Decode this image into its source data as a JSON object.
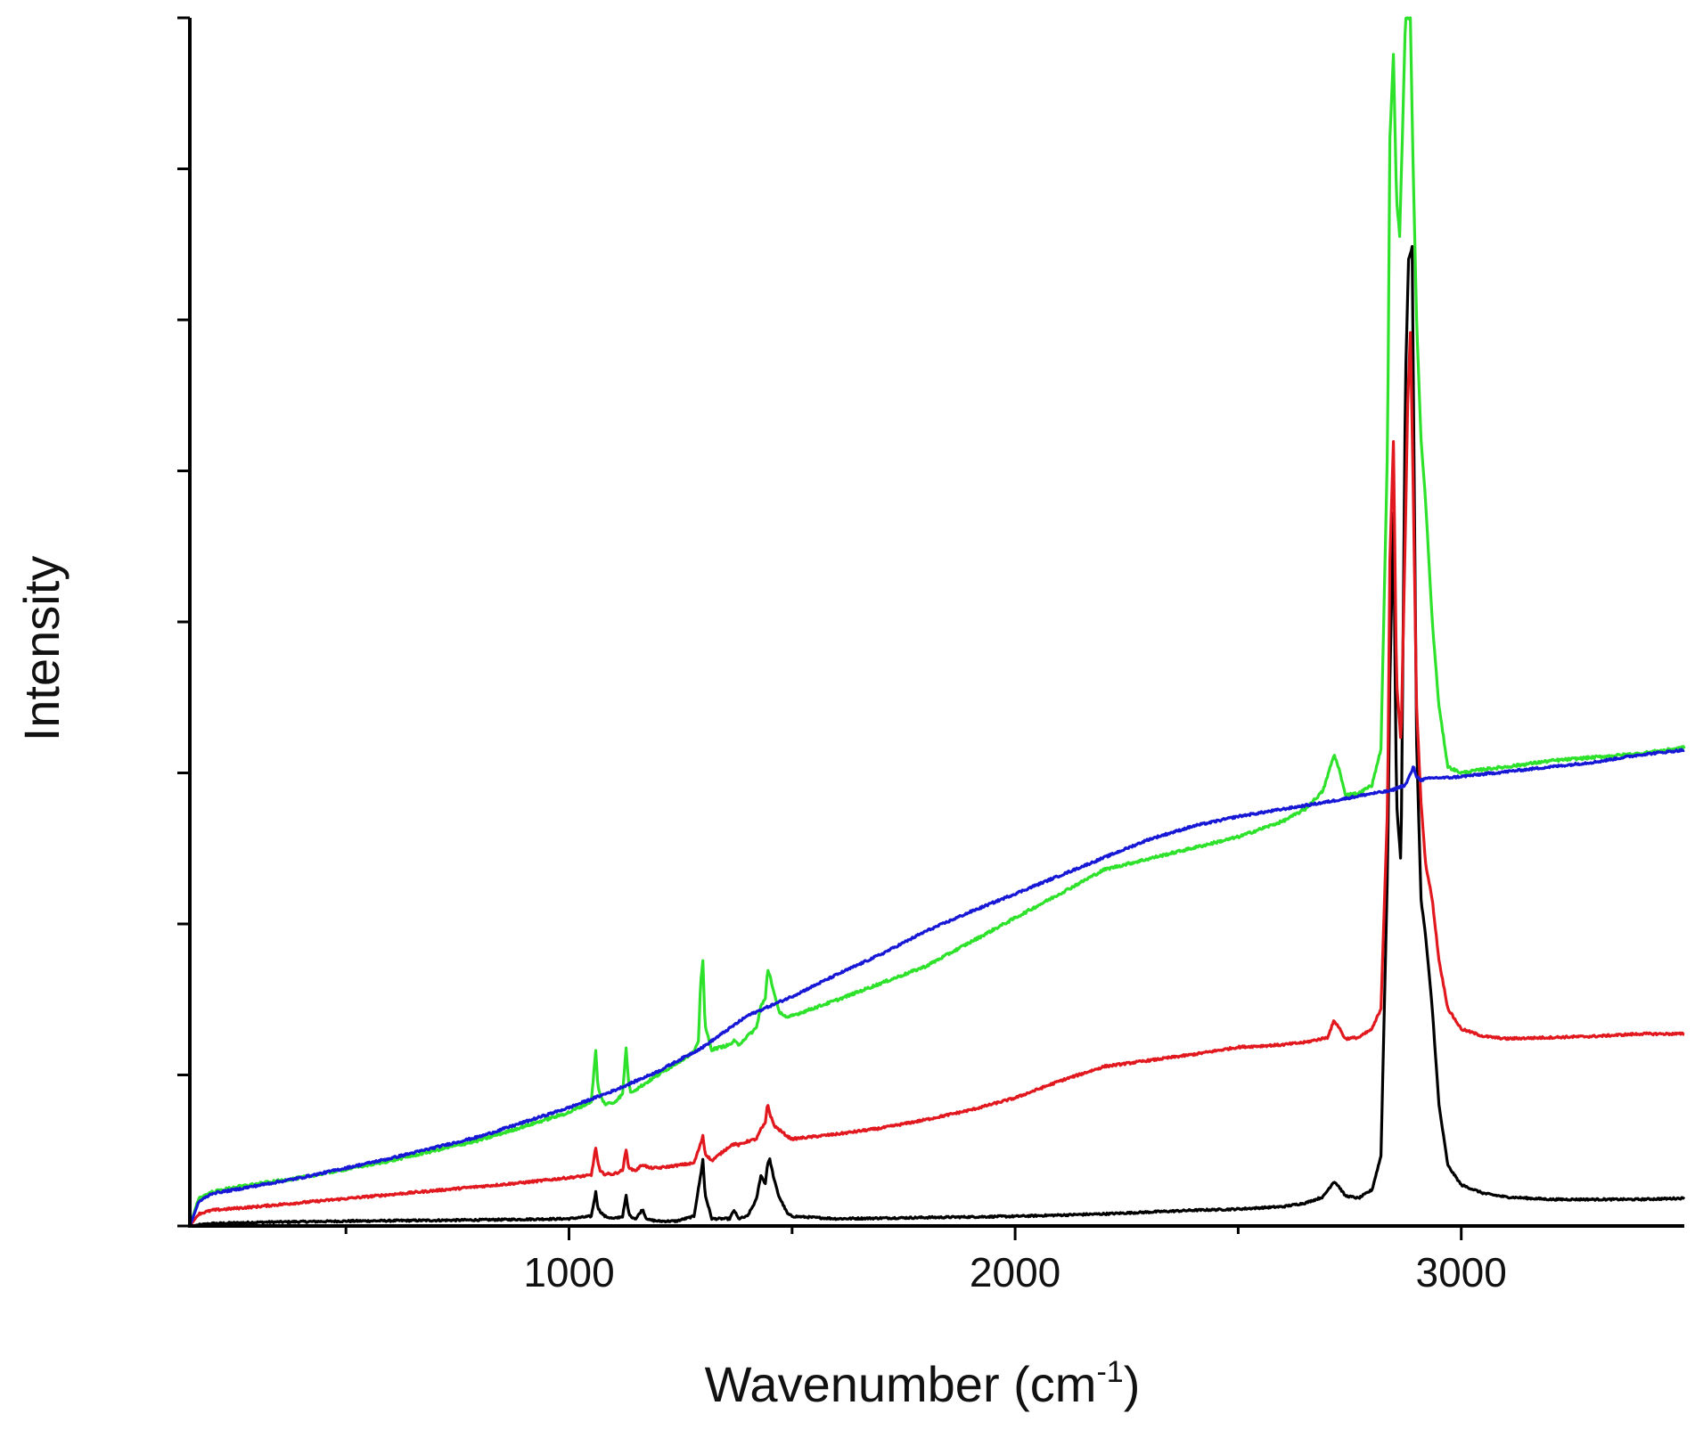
{
  "chart_data": {
    "type": "line",
    "title": "",
    "xlabel": "Wavenumber (cm",
    "xlabel_sup": "-1",
    "xlabel_close": ")",
    "ylabel": "Intensity",
    "xlim": [
      150,
      3500
    ],
    "ylim": [
      0,
      100
    ],
    "x_major_ticks": [
      1000,
      2000,
      3000
    ],
    "x_tick_labels": [
      "1000",
      "2000",
      "3000"
    ],
    "x_minor_ticks": [
      500,
      1500,
      2500
    ],
    "y_ticks": [
      0,
      12.5,
      25,
      37.5,
      50,
      62.5,
      75,
      87.5,
      100
    ],
    "y_tick_labels_shown": false,
    "grid": false,
    "legend": "none",
    "series": [
      {
        "name": "black",
        "color": "#000000",
        "noise": 0.15,
        "x": [
          150,
          200,
          300,
          500,
          800,
          1000,
          1050,
          1060,
          1065,
          1070,
          1080,
          1100,
          1120,
          1128,
          1133,
          1138,
          1150,
          1165,
          1172,
          1180,
          1200,
          1240,
          1280,
          1295,
          1300,
          1305,
          1320,
          1360,
          1370,
          1380,
          1400,
          1420,
          1430,
          1440,
          1445,
          1450,
          1460,
          1470,
          1490,
          1500,
          1600,
          1800,
          2000,
          2200,
          2400,
          2500,
          2600,
          2650,
          2690,
          2715,
          2725,
          2740,
          2770,
          2800,
          2820,
          2835,
          2840,
          2848,
          2855,
          2865,
          2875,
          2882,
          2890,
          2895,
          2900,
          2910,
          2920,
          2935,
          2950,
          2970,
          3000,
          3050,
          3100,
          3200,
          3300,
          3400,
          3500
        ],
        "y": [
          0,
          0.2,
          0.3,
          0.4,
          0.5,
          0.6,
          0.8,
          2.8,
          1.5,
          1.2,
          0.8,
          0.6,
          0.8,
          2.5,
          1.2,
          0.8,
          0.6,
          1.4,
          0.7,
          0.5,
          0.4,
          0.4,
          0.8,
          4.2,
          5.5,
          2.6,
          0.6,
          0.6,
          1.3,
          0.6,
          0.8,
          2.2,
          4.2,
          3.5,
          5.2,
          5.5,
          3.8,
          2.5,
          1.0,
          0.8,
          0.6,
          0.7,
          0.8,
          1.0,
          1.3,
          1.4,
          1.6,
          1.9,
          2.4,
          3.7,
          3.3,
          2.5,
          2.3,
          3.0,
          5.8,
          30,
          45,
          59,
          35,
          30,
          70,
          80,
          81,
          60,
          40,
          27,
          24,
          18,
          10,
          5,
          3.4,
          2.7,
          2.4,
          2.2,
          2.2,
          2.2,
          2.3
        ]
      },
      {
        "name": "red",
        "color": "#e2181f",
        "noise": 0.18,
        "x": [
          150,
          170,
          200,
          300,
          600,
          900,
          1050,
          1060,
          1065,
          1070,
          1080,
          1100,
          1120,
          1128,
          1133,
          1138,
          1150,
          1165,
          1180,
          1200,
          1280,
          1295,
          1300,
          1305,
          1320,
          1360,
          1370,
          1380,
          1400,
          1420,
          1430,
          1440,
          1445,
          1450,
          1460,
          1470,
          1490,
          1500,
          1600,
          1700,
          1800,
          1900,
          2000,
          2100,
          2200,
          2300,
          2400,
          2500,
          2600,
          2650,
          2700,
          2715,
          2725,
          2740,
          2770,
          2800,
          2820,
          2835,
          2840,
          2848,
          2855,
          2865,
          2875,
          2880,
          2886,
          2892,
          2900,
          2910,
          2920,
          2935,
          2950,
          2970,
          3000,
          3050,
          3100,
          3200,
          3300,
          3400,
          3500
        ],
        "y": [
          0,
          1.0,
          1.3,
          1.6,
          2.6,
          3.6,
          4.2,
          6.5,
          5.2,
          4.5,
          4.3,
          4.3,
          4.6,
          6.3,
          5.0,
          4.7,
          4.6,
          5.1,
          4.8,
          4.8,
          5.2,
          6.8,
          7.5,
          6.0,
          5.4,
          6.6,
          6.8,
          6.7,
          7.0,
          7.2,
          8.0,
          8.5,
          10.2,
          9.3,
          8.3,
          8.0,
          7.4,
          7.2,
          7.6,
          8.1,
          8.8,
          9.6,
          10.6,
          12.0,
          13.2,
          13.7,
          14.2,
          14.8,
          15.0,
          15.2,
          15.6,
          17.0,
          16.5,
          15.5,
          15.6,
          16.3,
          18.0,
          35,
          55,
          65,
          45,
          40,
          58,
          68,
          74,
          62,
          43,
          35,
          30,
          27,
          22,
          18,
          16.3,
          15.7,
          15.5,
          15.6,
          15.7,
          15.9,
          15.9
        ]
      },
      {
        "name": "green",
        "color": "#2ee22c",
        "noise": 0.22,
        "x": [
          150,
          170,
          200,
          250,
          400,
          600,
          800,
          1000,
          1050,
          1060,
          1065,
          1070,
          1080,
          1100,
          1120,
          1128,
          1133,
          1138,
          1150,
          1200,
          1280,
          1290,
          1295,
          1300,
          1305,
          1320,
          1360,
          1370,
          1380,
          1400,
          1420,
          1430,
          1440,
          1445,
          1450,
          1460,
          1470,
          1490,
          1500,
          1600,
          1800,
          2000,
          2200,
          2400,
          2500,
          2600,
          2650,
          2690,
          2715,
          2725,
          2740,
          2770,
          2800,
          2820,
          2835,
          2840,
          2848,
          2855,
          2862,
          2868,
          2875,
          2880,
          2886,
          2892,
          2900,
          2910,
          2920,
          2935,
          2950,
          2970,
          3000,
          3050,
          3100,
          3200,
          3300,
          3400,
          3500
        ],
        "y": [
          0,
          2.3,
          2.8,
          3.2,
          4.0,
          5.4,
          7.1,
          9.4,
          10.3,
          14.5,
          11.5,
          10.8,
          10.1,
          10.2,
          10.9,
          14.8,
          12.0,
          11.1,
          11.3,
          12.5,
          14.4,
          15.2,
          20.2,
          22.0,
          16.5,
          14.6,
          15.0,
          15.3,
          15.0,
          15.7,
          16.4,
          18.2,
          18.8,
          21.2,
          20.8,
          19.2,
          17.8,
          17.2,
          17.4,
          18.7,
          21.5,
          25.5,
          29.5,
          31.3,
          32.2,
          33.5,
          34.5,
          36.0,
          39.0,
          38.0,
          35.7,
          35.8,
          36.5,
          39.5,
          65,
          90,
          97,
          85,
          82,
          90,
          100,
          100,
          100,
          88,
          75,
          65,
          60,
          50,
          43,
          38,
          37.5,
          37.8,
          38.0,
          38.5,
          38.8,
          39.1,
          39.6
        ]
      },
      {
        "name": "blue",
        "color": "#1717d6",
        "noise": 0.18,
        "x": [
          150,
          170,
          200,
          250,
          400,
          600,
          800,
          1000,
          1100,
          1200,
          1300,
          1400,
          1500,
          1600,
          1700,
          1800,
          1900,
          2000,
          2100,
          2200,
          2300,
          2400,
          2500,
          2600,
          2700,
          2800,
          2840,
          2860,
          2875,
          2885,
          2893,
          2900,
          2910,
          2920,
          2940,
          2970,
          3000,
          3100,
          3200,
          3300,
          3400,
          3500
        ],
        "y": [
          0,
          2.0,
          2.7,
          3.0,
          4.0,
          5.6,
          7.4,
          9.8,
          11.2,
          12.8,
          14.8,
          17.4,
          19.0,
          20.8,
          22.5,
          24.4,
          26.0,
          27.5,
          29.0,
          30.5,
          32.0,
          33.1,
          33.9,
          34.5,
          35.1,
          35.8,
          36.0,
          36.3,
          36.5,
          37.3,
          38.0,
          37.2,
          36.9,
          37.0,
          37.1,
          37.1,
          37.2,
          37.6,
          38.0,
          38.4,
          39.0,
          39.4
        ]
      }
    ]
  }
}
